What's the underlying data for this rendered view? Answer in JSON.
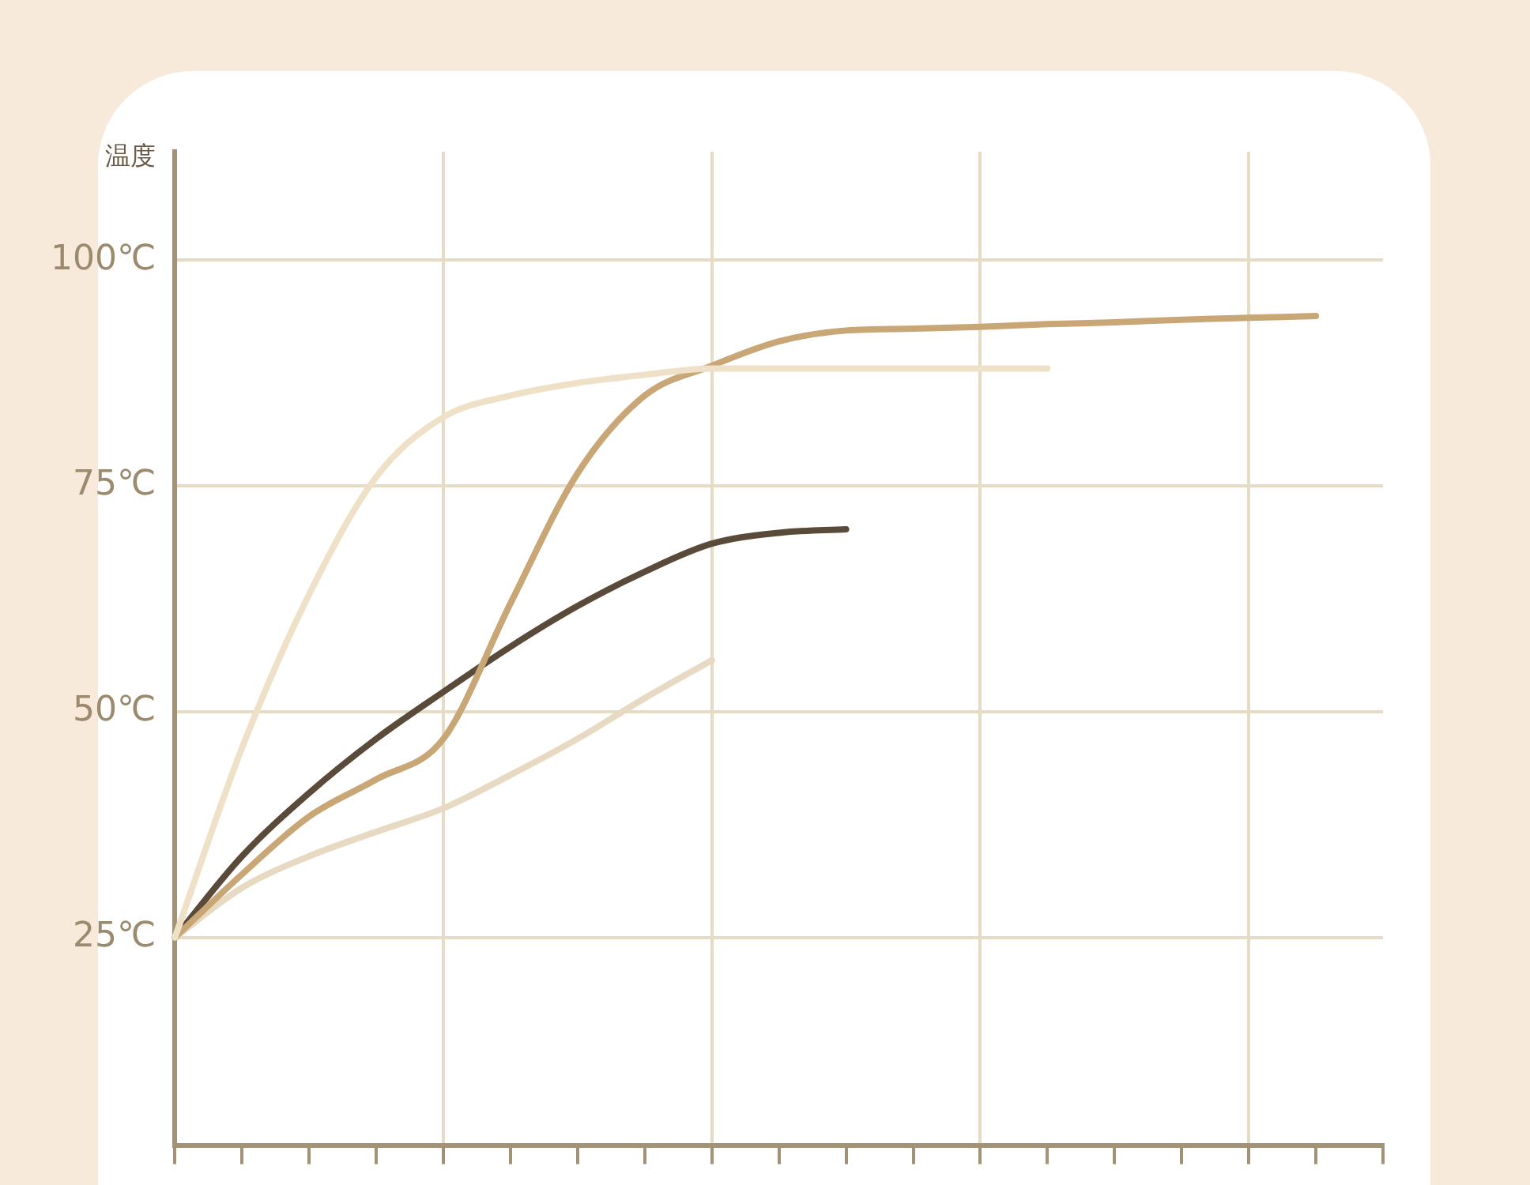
{
  "chart_data": {
    "type": "line",
    "ylabel": "温度",
    "categories": [
      null,
      null,
      null,
      null,
      null,
      null,
      null,
      null,
      null,
      null,
      null,
      null,
      null,
      null,
      null,
      null,
      null,
      null,
      null
    ],
    "ylim": [
      2,
      112
    ],
    "yticks": [
      {
        "value": 25,
        "label": "25℃"
      },
      {
        "value": 50,
        "label": "50℃"
      },
      {
        "value": 75,
        "label": "75℃"
      },
      {
        "value": 100,
        "label": "100℃"
      }
    ],
    "grid": true,
    "legend": false,
    "marker": "none",
    "line_style": "solid",
    "tick_labels": "y",
    "series": [
      {
        "color": "#efe0c8",
        "values": [
          25,
          46,
          63,
          76,
          82.6,
          85,
          86.4,
          87.3,
          88,
          88,
          88,
          88,
          88,
          88,
          null,
          null,
          null,
          null,
          null
        ]
      },
      {
        "color": "#c8a676",
        "values": [
          25,
          32,
          38.4,
          42.5,
          47,
          62,
          76.4,
          85,
          88.3,
          91,
          92.2,
          92.4,
          92.6,
          92.9,
          93.1,
          93.4,
          93.6,
          93.8,
          null
        ]
      },
      {
        "color": "#5a4a3a",
        "values": [
          25,
          34,
          41,
          47,
          52.2,
          57.2,
          61.7,
          65.5,
          68.6,
          69.8,
          70.2,
          null,
          null,
          null,
          null,
          null,
          null,
          null,
          null
        ]
      },
      {
        "color": "#e8d9c2",
        "values": [
          25,
          30.5,
          34,
          36.7,
          39.3,
          43,
          47,
          51.5,
          55.7,
          null,
          null,
          null,
          null,
          null,
          null,
          null,
          null,
          null,
          null
        ]
      }
    ]
  }
}
